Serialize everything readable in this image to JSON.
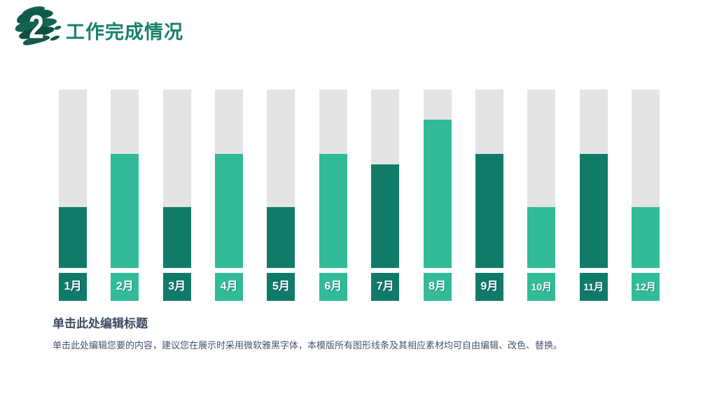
{
  "header": {
    "section_number": "2",
    "title": "工作完成情况",
    "title_color": "#17826B",
    "brush_colors": [
      "#0F5A4B",
      "#116353",
      "#0C4F43",
      "#135B4D",
      "#14604F"
    ]
  },
  "chart_data": {
    "type": "bar",
    "title": "",
    "xlabel": "",
    "ylabel": "",
    "categories": [
      "1月",
      "2月",
      "3月",
      "4月",
      "5月",
      "6月",
      "7月",
      "8月",
      "9月",
      "10月",
      "11月",
      "12月"
    ],
    "values": [
      34,
      64,
      34,
      64,
      34,
      64,
      58,
      83,
      64,
      34,
      64,
      34
    ],
    "ylim": [
      0,
      100
    ],
    "unit": "percent",
    "legend": "none",
    "gridlines": false,
    "layout_hint": "12 vertical progress columns; full-height gray track behind each colored fill; colored month tile below each column",
    "colors": {
      "odd_month_fill": "#117B6A",
      "even_month_fill": "#31BB98",
      "track": "#E4E4E4",
      "label_text": "#FFFFFF"
    }
  },
  "footer": {
    "heading": "单击此处编辑标题",
    "body": "单击此处编辑您要的内容，建议您在展示时采用微软雅黑字体，本模版所有图形线条及其相应素材均可自由编辑、改色、替换。"
  }
}
